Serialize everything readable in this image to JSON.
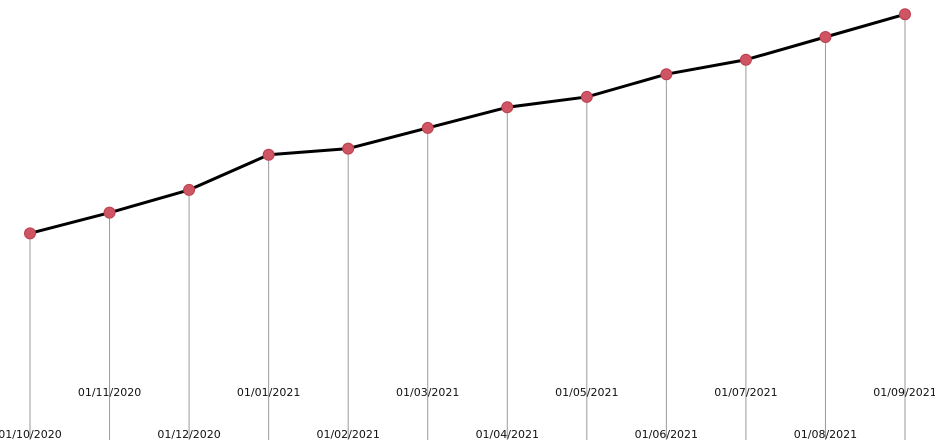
{
  "chart_data": {
    "type": "line",
    "title": "",
    "xlabel": "",
    "ylabel": "",
    "x": [
      "01/10/2020",
      "01/11/2020",
      "01/12/2020",
      "01/01/2021",
      "01/02/2021",
      "01/03/2021",
      "01/04/2021",
      "01/05/2021",
      "01/06/2021",
      "01/07/2021",
      "01/08/2021",
      "01/09/2021"
    ],
    "series": [
      {
        "values": [
          100,
          110,
          121,
          138,
          141,
          151,
          161,
          166,
          177,
          184,
          195,
          206
        ]
      }
    ],
    "ylim": [
      0,
      210
    ],
    "grid": false,
    "legend": "none",
    "label_stagger": "alternating",
    "colors": {
      "line": "#000000",
      "point": "#d05564",
      "stem": "#9a9a9a",
      "label": "#111111"
    }
  }
}
